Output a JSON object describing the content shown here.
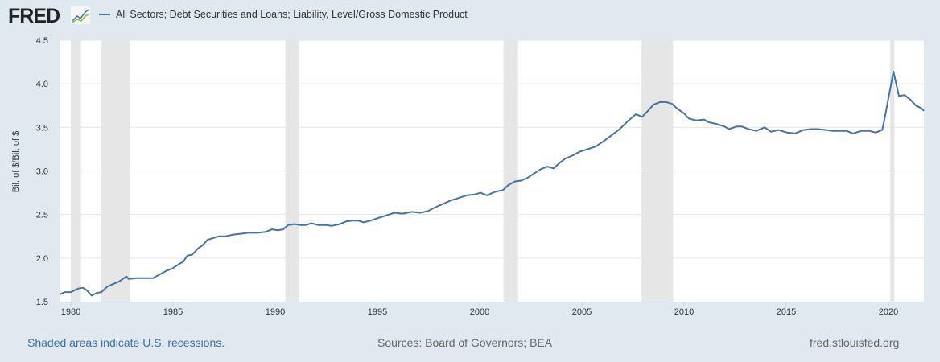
{
  "header": {
    "logo": "FRED",
    "legend_label": "All Sectors; Debt Securities and Loans; Liability, Level/Gross Domestic Product"
  },
  "footer": {
    "recessions_note": "Shaded areas indicate U.S. recessions.",
    "sources": "Sources: Board of Governors; BEA",
    "site": "fred.stlouisfed.org"
  },
  "colors": {
    "line": "#4572a7",
    "recession": "#e6e6e6",
    "grid": "#e6e6e6",
    "background": "#e1e9f0"
  },
  "chart_data": {
    "type": "line",
    "title": "All Sectors; Debt Securities and Loans; Liability, Level/Gross Domestic Product",
    "xlabel": "",
    "ylabel": "Bil. of $/Bil. of $",
    "xlim": [
      1979.45,
      2021.73
    ],
    "ylim": [
      1.5,
      4.5
    ],
    "yticks": [
      "1.5",
      "2.0",
      "2.5",
      "3.0",
      "3.5",
      "4.0",
      "4.5"
    ],
    "xticks": [
      "1980",
      "1985",
      "1990",
      "1995",
      "2000",
      "2005",
      "2010",
      "2015",
      "2020"
    ],
    "grid": true,
    "legend_position": "top-left",
    "recessions": [
      [
        1980.0,
        1980.5
      ],
      [
        1981.5,
        1982.88
      ],
      [
        1990.5,
        1991.17
      ],
      [
        2001.17,
        2001.88
      ],
      [
        2007.92,
        2009.46
      ],
      [
        2020.08,
        2020.29
      ]
    ],
    "series": [
      {
        "name": "All Sectors; Debt Securities and Loans; Liability, Level/Gross Domestic Product",
        "x": [
          1979.45,
          1979.69,
          1980.0,
          1980.35,
          1980.59,
          1980.79,
          1981.02,
          1981.26,
          1981.5,
          1981.77,
          1982.05,
          1982.36,
          1982.72,
          1982.83,
          1983.23,
          1984.02,
          1984.41,
          1984.72,
          1984.96,
          1985.28,
          1985.51,
          1985.71,
          1985.94,
          1986.22,
          1986.46,
          1986.69,
          1986.97,
          1987.24,
          1987.56,
          1987.95,
          1988.35,
          1988.66,
          1989.13,
          1989.53,
          1989.84,
          1990.12,
          1990.39,
          1990.63,
          1990.94,
          1991.22,
          1991.5,
          1991.77,
          1992.09,
          1992.48,
          1992.76,
          1993.15,
          1993.46,
          1993.78,
          1994.06,
          1994.33,
          1994.65,
          1995.04,
          1995.43,
          1995.83,
          1996.22,
          1996.69,
          1997.09,
          1997.48,
          1997.8,
          1998.19,
          1998.58,
          1998.98,
          1999.37,
          1999.76,
          2000.04,
          2000.35,
          2000.75,
          2001.14,
          2001.42,
          2001.73,
          2002.05,
          2002.4,
          2002.72,
          2002.99,
          2003.31,
          2003.62,
          2003.9,
          2004.17,
          2004.57,
          2004.88,
          2005.28,
          2005.67,
          2006.06,
          2006.46,
          2006.85,
          2007.24,
          2007.64,
          2007.95,
          2008.23,
          2008.5,
          2008.82,
          2009.13,
          2009.41,
          2009.69,
          2010.0,
          2010.24,
          2010.59,
          2010.98,
          2011.18,
          2011.57,
          2011.97,
          2012.2,
          2012.56,
          2012.83,
          2013.15,
          2013.54,
          2013.94,
          2014.25,
          2014.61,
          2015.04,
          2015.43,
          2015.83,
          2016.22,
          2016.54,
          2016.93,
          2017.28,
          2017.68,
          2017.95,
          2018.27,
          2018.66,
          2019.06,
          2019.37,
          2019.69,
          2019.8,
          2020.24,
          2020.51,
          2020.79,
          2021.06,
          2021.34,
          2021.61,
          2021.73
        ],
        "y": [
          1.58,
          1.61,
          1.61,
          1.65,
          1.66,
          1.63,
          1.57,
          1.6,
          1.61,
          1.67,
          1.7,
          1.73,
          1.79,
          1.76,
          1.77,
          1.77,
          1.82,
          1.86,
          1.88,
          1.93,
          1.96,
          2.03,
          2.04,
          2.11,
          2.15,
          2.21,
          2.23,
          2.25,
          2.25,
          2.27,
          2.28,
          2.29,
          2.29,
          2.3,
          2.33,
          2.32,
          2.33,
          2.38,
          2.39,
          2.38,
          2.38,
          2.4,
          2.38,
          2.38,
          2.37,
          2.39,
          2.42,
          2.43,
          2.43,
          2.41,
          2.43,
          2.46,
          2.49,
          2.52,
          2.51,
          2.53,
          2.52,
          2.54,
          2.58,
          2.62,
          2.66,
          2.69,
          2.72,
          2.73,
          2.75,
          2.72,
          2.76,
          2.78,
          2.84,
          2.88,
          2.89,
          2.93,
          2.98,
          3.02,
          3.05,
          3.03,
          3.09,
          3.14,
          3.18,
          3.22,
          3.25,
          3.28,
          3.34,
          3.41,
          3.48,
          3.57,
          3.65,
          3.62,
          3.69,
          3.76,
          3.79,
          3.79,
          3.77,
          3.71,
          3.66,
          3.6,
          3.58,
          3.59,
          3.56,
          3.54,
          3.51,
          3.48,
          3.51,
          3.51,
          3.48,
          3.46,
          3.5,
          3.45,
          3.47,
          3.44,
          3.43,
          3.47,
          3.48,
          3.48,
          3.47,
          3.46,
          3.46,
          3.46,
          3.43,
          3.46,
          3.46,
          3.44,
          3.47,
          3.59,
          4.14,
          3.86,
          3.87,
          3.82,
          3.75,
          3.72,
          3.69
        ]
      }
    ]
  }
}
